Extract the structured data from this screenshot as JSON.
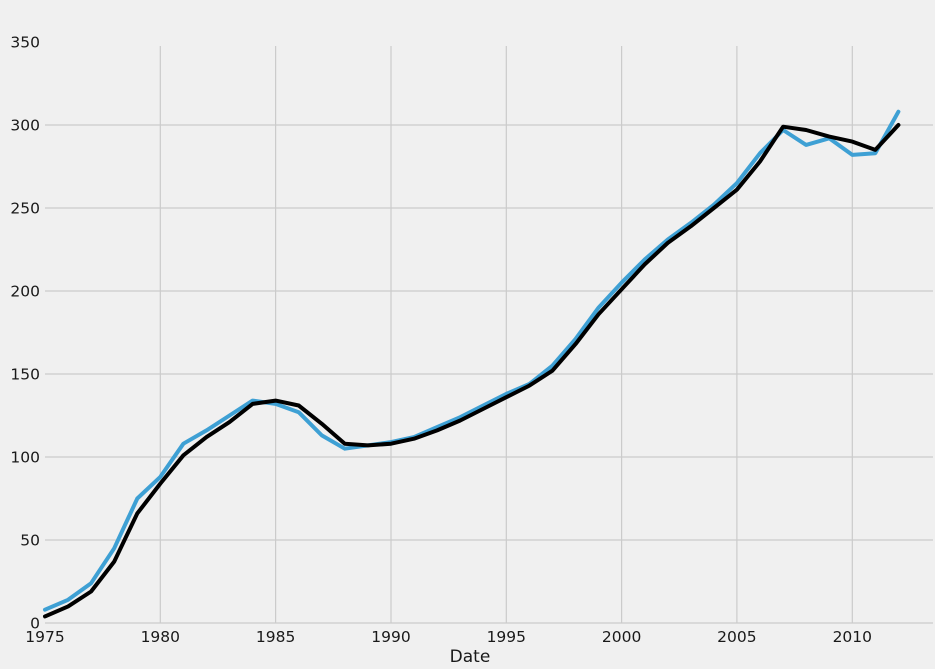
{
  "chart_data": {
    "type": "line",
    "title": "",
    "xlabel": "Date",
    "ylabel": "",
    "x": [
      1975,
      1976,
      1977,
      1978,
      1979,
      1980,
      1981,
      1982,
      1983,
      1984,
      1985,
      1986,
      1987,
      1988,
      1989,
      1990,
      1991,
      1992,
      1993,
      1994,
      1995,
      1996,
      1997,
      1998,
      1999,
      2000,
      2001,
      2002,
      2003,
      2004,
      2005,
      2006,
      2007,
      2008,
      2009,
      2010,
      2011,
      2012
    ],
    "series": [
      {
        "name": "series-line-blue",
        "color": "#3EA0D4",
        "stroke_width": 4,
        "values": [
          8,
          14,
          24,
          45,
          75,
          88,
          108,
          116,
          125,
          134,
          132,
          127,
          113,
          105,
          107,
          109,
          112,
          118,
          124,
          131,
          138,
          144,
          155,
          171,
          190,
          205,
          219,
          231,
          241,
          252,
          265,
          283,
          297,
          288,
          292,
          282,
          283,
          308
        ]
      },
      {
        "name": "series-line-black",
        "color": "#000000",
        "stroke_width": 4,
        "values": [
          4,
          10,
          19,
          37,
          66,
          84,
          101,
          112,
          121,
          132,
          134,
          131,
          120,
          108,
          107,
          108,
          111,
          116,
          122,
          129,
          136,
          143,
          152,
          168,
          186,
          201,
          216,
          229,
          239,
          250,
          261,
          278,
          299,
          297,
          293,
          290,
          285,
          300
        ]
      }
    ],
    "xlim": [
      1975,
      2013.5
    ],
    "ylim": [
      0,
      350
    ],
    "x_ticks": [
      1975,
      1980,
      1985,
      1990,
      1995,
      2000,
      2005,
      2010
    ],
    "y_ticks": [
      0,
      50,
      100,
      150,
      200,
      250,
      300,
      350
    ],
    "grid": true,
    "legend": "none",
    "background_color": "#f0f0f0",
    "grid_color": "#cbcbcb",
    "tick_text_color": "#191919"
  }
}
